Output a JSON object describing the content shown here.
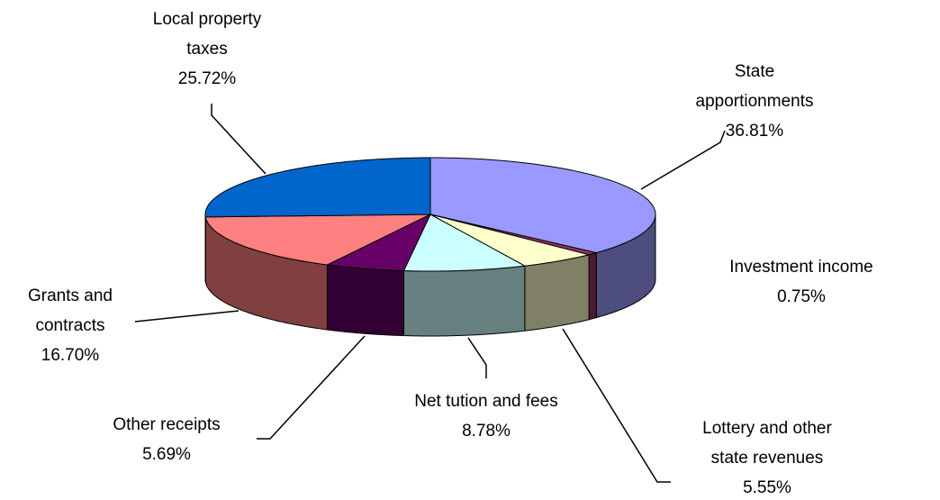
{
  "chart_data": {
    "type": "pie3d",
    "categories": [
      "State apportionments",
      "Investment income",
      "Lottery and other state revenues",
      "Net tution and fees",
      "Other receipts",
      "Grants and contracts",
      "Local property taxes"
    ],
    "values": [
      36.81,
      0.75,
      5.55,
      8.78,
      5.69,
      16.7,
      25.72
    ],
    "value_labels": [
      "36.81%",
      "0.75%",
      "5.55%",
      "8.78%",
      "5.69%",
      "16.70%",
      "25.72%"
    ],
    "colors": [
      "#9999ff",
      "#993366",
      "#ffffcc",
      "#ccffff",
      "#660066",
      "#ff8080",
      "#0066cc"
    ]
  }
}
